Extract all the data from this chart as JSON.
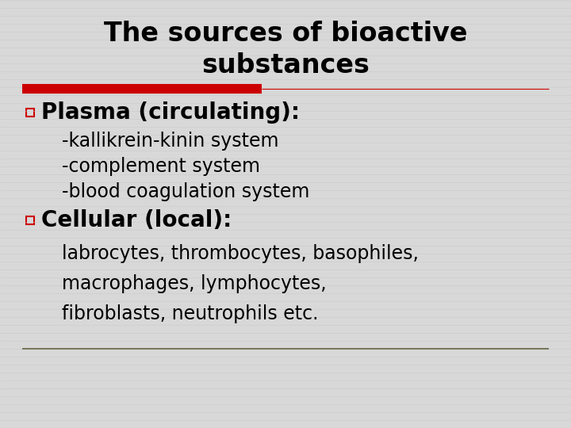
{
  "title_line1": "The sources of bioactive",
  "title_line2": "substances",
  "title_fontsize": 24,
  "title_color": "#000000",
  "bg_color": "#d8d8d8",
  "stripe_color": "#c8c8c8",
  "red_sep_color": "#cc0000",
  "red_sep_thickness": 3.5,
  "bullet_color": "#cc0000",
  "bullet1_label": "Plasma (circulating):",
  "bullet1_items": [
    "-kallikrein-kinin system",
    "-complement system",
    "-blood coagulation system"
  ],
  "bullet2_label": "Cellular (local):",
  "bullet2_items": [
    "labrocytes, thrombocytes, basophiles,",
    "macrophages, lymphocytes,",
    "fibroblasts, neutrophils etc."
  ],
  "bullet_header_fontsize": 20,
  "bullet_item_fontsize": 17,
  "bottom_line_color": "#666644",
  "num_stripes": 54,
  "stripe_alpha": 0.45
}
